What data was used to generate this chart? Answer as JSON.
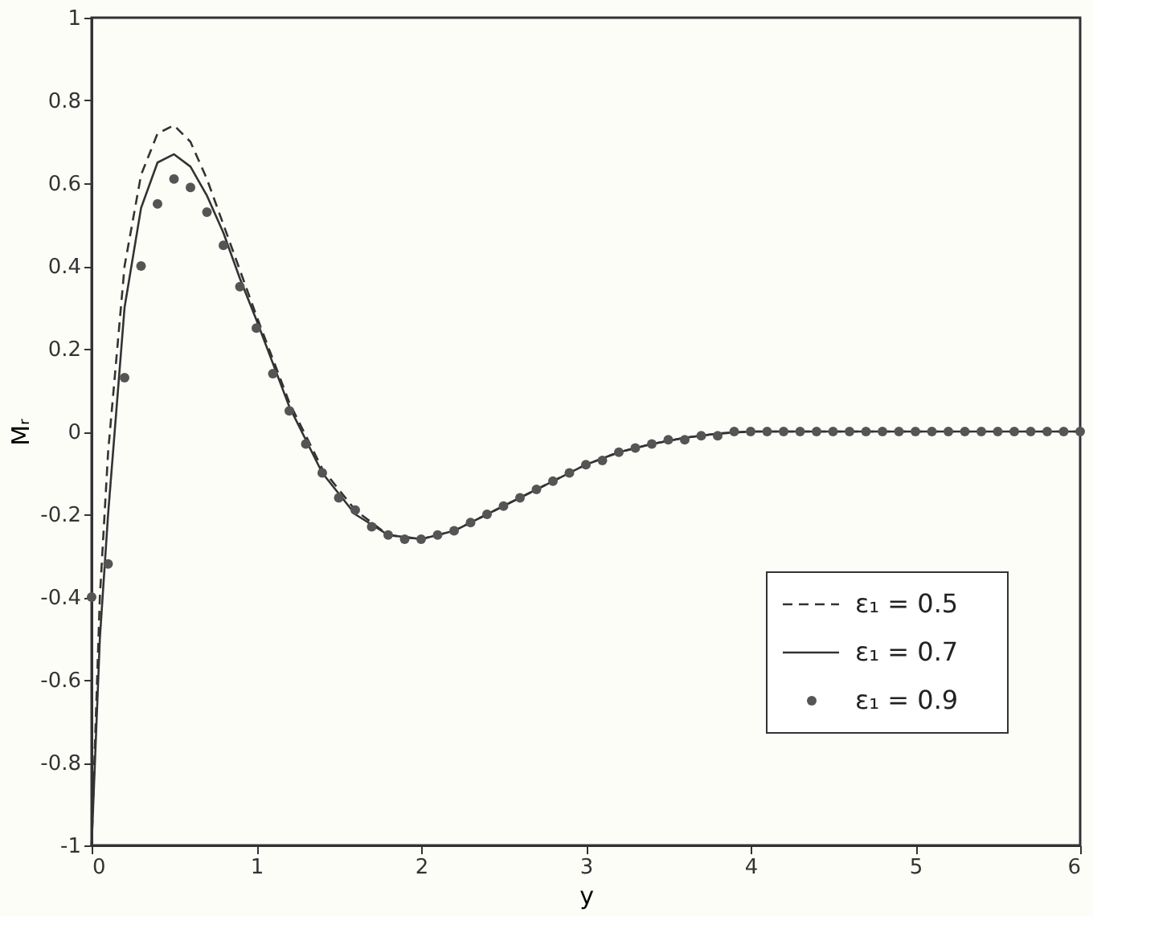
{
  "chart_data": {
    "type": "line",
    "xlabel": "y",
    "ylabel": "Mᵣ",
    "xlim": [
      0,
      6
    ],
    "ylim": [
      -1,
      1
    ],
    "xticks": [
      0,
      1,
      2,
      3,
      4,
      5,
      6
    ],
    "yticks": [
      -1,
      -0.8,
      -0.6,
      -0.4,
      -0.2,
      0,
      0.2,
      0.4,
      0.6,
      0.8,
      1
    ],
    "grid": false,
    "legend": "bottom right",
    "series": [
      {
        "name": "ε₁ = 0.5",
        "line_style": "dashed",
        "color": "#333333",
        "x": [
          0,
          0.05,
          0.1,
          0.2,
          0.3,
          0.4,
          0.5,
          0.6,
          0.7,
          0.8,
          0.9,
          1.0,
          1.2,
          1.4,
          1.6,
          1.8,
          2.0,
          2.2,
          2.4,
          2.6,
          2.8,
          3.0,
          3.2,
          3.4,
          3.6,
          3.8,
          4.0,
          5.0,
          6.0
        ],
        "values": [
          -1,
          -0.4,
          -0.05,
          0.4,
          0.62,
          0.72,
          0.74,
          0.7,
          0.61,
          0.5,
          0.39,
          0.28,
          0.07,
          -0.09,
          -0.19,
          -0.25,
          -0.26,
          -0.24,
          -0.2,
          -0.16,
          -0.12,
          -0.08,
          -0.05,
          -0.03,
          -0.015,
          -0.005,
          0,
          0,
          0
        ]
      },
      {
        "name": "ε₁ = 0.7",
        "line_style": "solid",
        "color": "#333333",
        "x": [
          0,
          0.05,
          0.1,
          0.2,
          0.3,
          0.4,
          0.5,
          0.6,
          0.7,
          0.8,
          0.9,
          1.0,
          1.2,
          1.4,
          1.6,
          1.8,
          2.0,
          2.2,
          2.4,
          2.6,
          2.8,
          3.0,
          3.2,
          3.4,
          3.6,
          3.8,
          4.0,
          5.0,
          6.0
        ],
        "values": [
          -1,
          -0.5,
          -0.2,
          0.3,
          0.54,
          0.65,
          0.67,
          0.64,
          0.57,
          0.48,
          0.37,
          0.27,
          0.06,
          -0.1,
          -0.2,
          -0.25,
          -0.26,
          -0.24,
          -0.2,
          -0.16,
          -0.12,
          -0.08,
          -0.05,
          -0.03,
          -0.015,
          -0.005,
          0,
          0,
          0
        ]
      },
      {
        "name": "ε₁ = 0.9",
        "type": "scatter",
        "marker": "circle",
        "color": "#555555",
        "x": [
          0,
          0.1,
          0.2,
          0.3,
          0.4,
          0.5,
          0.6,
          0.7,
          0.8,
          0.9,
          1.0,
          1.1,
          1.2,
          1.3,
          1.4,
          1.5,
          1.6,
          1.7,
          1.8,
          1.9,
          2.0,
          2.1,
          2.2,
          2.3,
          2.4,
          2.5,
          2.6,
          2.7,
          2.8,
          2.9,
          3.0,
          3.1,
          3.2,
          3.3,
          3.4,
          3.5,
          3.6,
          3.7,
          3.8,
          3.9,
          4.0,
          4.1,
          4.2,
          4.3,
          4.4,
          4.5,
          4.6,
          4.7,
          4.8,
          4.9,
          5.0,
          5.1,
          5.2,
          5.3,
          5.4,
          5.5,
          5.6,
          5.7,
          5.8,
          5.9,
          6.0
        ],
        "values": [
          -0.4,
          -0.32,
          0.13,
          0.4,
          0.55,
          0.61,
          0.59,
          0.53,
          0.45,
          0.35,
          0.25,
          0.14,
          0.05,
          -0.03,
          -0.1,
          -0.16,
          -0.19,
          -0.23,
          -0.25,
          -0.26,
          -0.26,
          -0.25,
          -0.24,
          -0.22,
          -0.2,
          -0.18,
          -0.16,
          -0.14,
          -0.12,
          -0.1,
          -0.08,
          -0.07,
          -0.05,
          -0.04,
          -0.03,
          -0.02,
          -0.02,
          -0.01,
          -0.01,
          0,
          0,
          0,
          0,
          0,
          0,
          0,
          0,
          0,
          0,
          0,
          0,
          0,
          0,
          0,
          0,
          0,
          0,
          0,
          0,
          0,
          0
        ]
      }
    ]
  }
}
